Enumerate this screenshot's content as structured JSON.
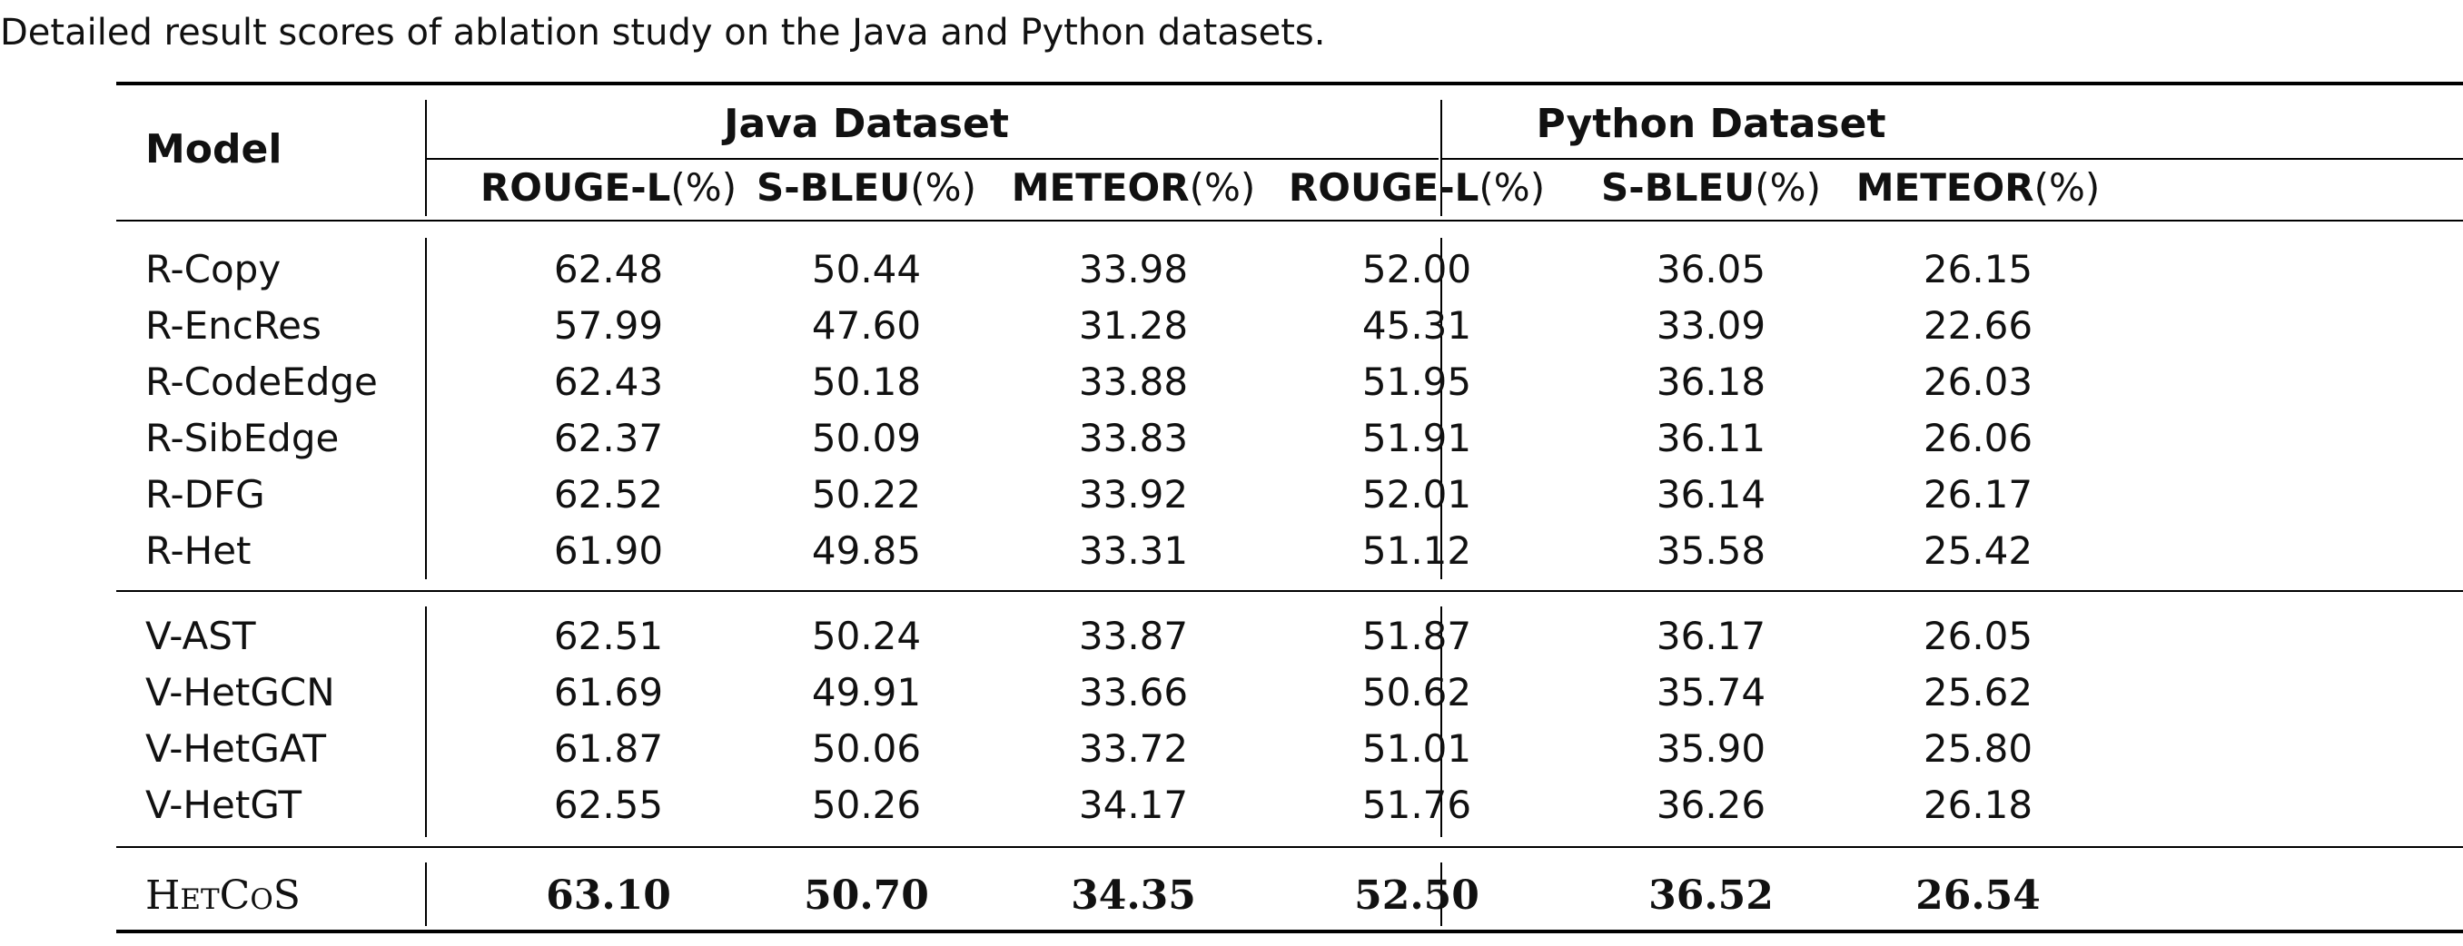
{
  "caption": "Detailed result scores of ablation study on the Java and Python datasets.",
  "table": {
    "model_header": "Model",
    "groups": [
      "Java Dataset",
      "Python Dataset"
    ],
    "columns": [
      {
        "name": "ROUGE-L",
        "unit": "(%)"
      },
      {
        "name": "S-BLEU",
        "unit": "(%)"
      },
      {
        "name": "METEOR",
        "unit": "(%)"
      },
      {
        "name": "ROUGE-L",
        "unit": "(%)"
      },
      {
        "name": "S-BLEU",
        "unit": "(%)"
      },
      {
        "name": "METEOR",
        "unit": "(%)"
      }
    ],
    "rows": [
      {
        "model": "R-Copy",
        "values": [
          "62.48",
          "50.44",
          "33.98",
          "52.00",
          "36.05",
          "26.15"
        ]
      },
      {
        "model": "R-EncRes",
        "values": [
          "57.99",
          "47.60",
          "31.28",
          "45.31",
          "33.09",
          "22.66"
        ]
      },
      {
        "model": "R-CodeEdge",
        "values": [
          "62.43",
          "50.18",
          "33.88",
          "51.95",
          "36.18",
          "26.03"
        ]
      },
      {
        "model": "R-SibEdge",
        "values": [
          "62.37",
          "50.09",
          "33.83",
          "51.91",
          "36.11",
          "26.06"
        ]
      },
      {
        "model": "R-DFG",
        "values": [
          "62.52",
          "50.22",
          "33.92",
          "52.01",
          "36.14",
          "26.17"
        ]
      },
      {
        "model": "R-Het",
        "values": [
          "61.90",
          "49.85",
          "33.31",
          "51.12",
          "35.58",
          "25.42"
        ]
      },
      {
        "model": "V-AST",
        "values": [
          "62.51",
          "50.24",
          "33.87",
          "51.87",
          "36.17",
          "26.05"
        ]
      },
      {
        "model": "V-HetGCN",
        "values": [
          "61.69",
          "49.91",
          "33.66",
          "50.62",
          "35.74",
          "25.62"
        ]
      },
      {
        "model": "V-HetGAT",
        "values": [
          "61.87",
          "50.06",
          "33.72",
          "51.01",
          "35.90",
          "25.80"
        ]
      },
      {
        "model": "V-HetGT",
        "values": [
          "62.55",
          "50.26",
          "34.17",
          "51.76",
          "36.26",
          "26.18"
        ]
      },
      {
        "model": "HetCoS",
        "values": [
          "63.10",
          "50.70",
          "34.35",
          "52.50",
          "36.52",
          "26.54"
        ]
      }
    ]
  }
}
